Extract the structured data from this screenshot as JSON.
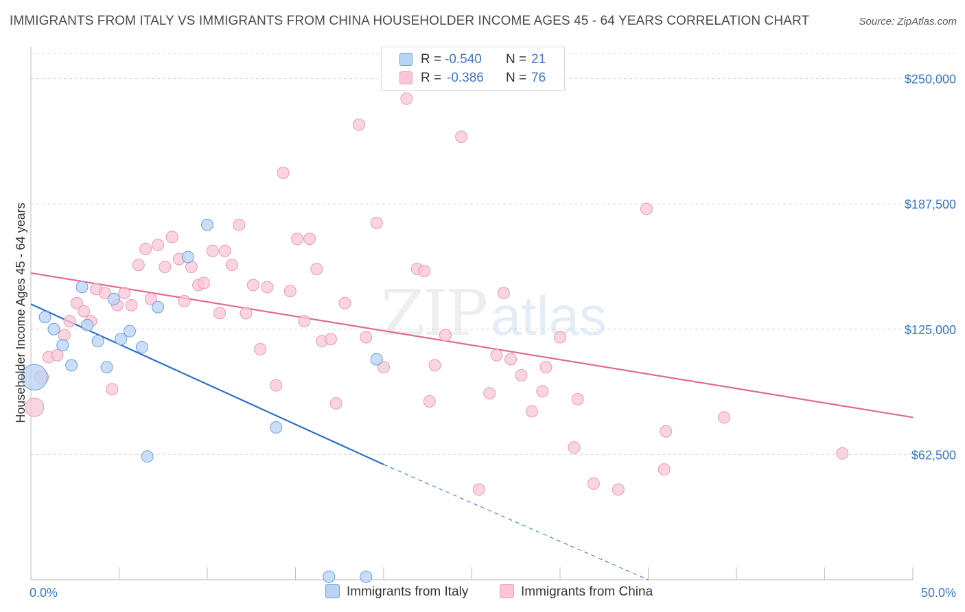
{
  "title": "IMMIGRANTS FROM ITALY VS IMMIGRANTS FROM CHINA HOUSEHOLDER INCOME AGES 45 - 64 YEARS CORRELATION CHART",
  "source": "Source: ZipAtlas.com",
  "colors": {
    "italy_fill": "#b9d3f5",
    "italy_stroke": "#6d9fe0",
    "italy_line": "#2a6fd1",
    "china_fill": "#f8c6d6",
    "china_stroke": "#ec9ab5",
    "china_line": "#e06a94",
    "tick_text": "#3c78c8",
    "grid": "#d9d9d9"
  },
  "legend": {
    "rows": [
      {
        "r_label": "R =",
        "r_value": "-0.540",
        "n_label": "N =",
        "n_value": "21"
      },
      {
        "r_label": "R =",
        "r_value": "-0.386",
        "n_label": "N =",
        "n_value": "76"
      }
    ]
  },
  "bottom_legend": {
    "italy": "Immigrants from Italy",
    "china": "Immigrants from China"
  },
  "chart_data": {
    "type": "scatter",
    "ylabel": "Householder Income Ages 45 - 64 years",
    "xlim": [
      0,
      50
    ],
    "ylim": [
      0,
      262500
    ],
    "x_tick_labels": [
      "0.0%",
      "50.0%"
    ],
    "y_ticks": [
      62500,
      125000,
      187500,
      250000
    ],
    "y_tick_labels": [
      "$62,500",
      "$125,000",
      "$187,500",
      "$250,000"
    ],
    "grid": true,
    "series": [
      {
        "name": "Immigrants from Italy",
        "points": [
          [
            0.2,
            101000,
            2.2
          ],
          [
            0.8,
            131000,
            1
          ],
          [
            1.3,
            125000,
            1
          ],
          [
            1.8,
            117000,
            1
          ],
          [
            2.3,
            107000,
            1
          ],
          [
            2.9,
            146000,
            1
          ],
          [
            3.2,
            127000,
            1
          ],
          [
            3.8,
            119000,
            1
          ],
          [
            4.3,
            106000,
            1
          ],
          [
            4.7,
            140000,
            1
          ],
          [
            5.1,
            120000,
            1
          ],
          [
            5.6,
            124000,
            1
          ],
          [
            6.3,
            116000,
            1
          ],
          [
            7.2,
            136000,
            1
          ],
          [
            6.6,
            61500,
            1
          ],
          [
            8.9,
            161000,
            1
          ],
          [
            10.0,
            177000,
            1
          ],
          [
            13.9,
            76000,
            1
          ],
          [
            19.6,
            110000,
            1
          ],
          [
            16.9,
            1500,
            1
          ],
          [
            19.0,
            1500,
            1
          ]
        ],
        "trend": {
          "x": [
            0,
            20
          ],
          "y": [
            137500,
            57500
          ]
        },
        "trend_extension": {
          "x": [
            20,
            35
          ],
          "y": [
            57500,
            0
          ]
        }
      },
      {
        "name": "Immigrants from China",
        "points": [
          [
            0.2,
            86000,
            1.6
          ],
          [
            0.6,
            101000,
            1.2
          ],
          [
            1.0,
            111000,
            1
          ],
          [
            1.5,
            112000,
            1
          ],
          [
            1.9,
            122000,
            1
          ],
          [
            2.2,
            129000,
            1
          ],
          [
            2.6,
            138000,
            1
          ],
          [
            3.0,
            134000,
            1
          ],
          [
            3.4,
            129000,
            1
          ],
          [
            3.7,
            145000,
            1
          ],
          [
            4.2,
            143000,
            1
          ],
          [
            4.6,
            95000,
            1
          ],
          [
            4.9,
            137000,
            1
          ],
          [
            5.3,
            143000,
            1
          ],
          [
            5.7,
            137000,
            1
          ],
          [
            6.1,
            157000,
            1
          ],
          [
            6.5,
            165000,
            1
          ],
          [
            6.8,
            140000,
            1
          ],
          [
            7.2,
            167000,
            1
          ],
          [
            7.6,
            156000,
            1
          ],
          [
            8.0,
            171000,
            1
          ],
          [
            8.4,
            160000,
            1
          ],
          [
            8.7,
            139000,
            1
          ],
          [
            9.1,
            156000,
            1
          ],
          [
            9.5,
            147000,
            1
          ],
          [
            9.8,
            148000,
            1
          ],
          [
            10.3,
            164000,
            1
          ],
          [
            10.7,
            133000,
            1
          ],
          [
            11.0,
            164000,
            1
          ],
          [
            11.4,
            157000,
            1
          ],
          [
            11.8,
            177000,
            1
          ],
          [
            12.2,
            133000,
            1
          ],
          [
            12.6,
            147000,
            1
          ],
          [
            13.0,
            115000,
            1
          ],
          [
            13.4,
            146000,
            1
          ],
          [
            13.9,
            97000,
            1
          ],
          [
            14.3,
            203000,
            1
          ],
          [
            14.7,
            144000,
            1
          ],
          [
            15.1,
            170000,
            1
          ],
          [
            15.5,
            129000,
            1
          ],
          [
            15.8,
            170000,
            1
          ],
          [
            16.2,
            155000,
            1
          ],
          [
            16.5,
            119000,
            1
          ],
          [
            17.0,
            120000,
            1
          ],
          [
            17.3,
            88000,
            1
          ],
          [
            17.8,
            138000,
            1
          ],
          [
            18.6,
            227000,
            1
          ],
          [
            19.0,
            121000,
            1
          ],
          [
            19.6,
            178000,
            1
          ],
          [
            20.0,
            106000,
            1
          ],
          [
            21.9,
            155000,
            1
          ],
          [
            22.3,
            154000,
            1
          ],
          [
            22.6,
            89000,
            1
          ],
          [
            22.9,
            107000,
            1
          ],
          [
            23.5,
            122000,
            1
          ],
          [
            24.4,
            221000,
            1
          ],
          [
            25.4,
            45000,
            1
          ],
          [
            26.0,
            93000,
            1
          ],
          [
            26.4,
            112000,
            1
          ],
          [
            26.8,
            143000,
            1
          ],
          [
            27.2,
            110000,
            1
          ],
          [
            27.8,
            102000,
            1
          ],
          [
            28.4,
            84000,
            1
          ],
          [
            29.0,
            94000,
            1
          ],
          [
            29.2,
            106000,
            1
          ],
          [
            30.0,
            121000,
            1
          ],
          [
            30.8,
            66000,
            1
          ],
          [
            31.0,
            90000,
            1
          ],
          [
            31.9,
            48000,
            1
          ],
          [
            33.3,
            45000,
            1
          ],
          [
            34.9,
            185000,
            1
          ],
          [
            35.9,
            55000,
            1
          ],
          [
            36.0,
            74000,
            1
          ],
          [
            39.3,
            81000,
            1
          ],
          [
            46.0,
            63000,
            1
          ],
          [
            21.3,
            240000,
            1
          ]
        ],
        "trend": {
          "x": [
            0,
            50
          ],
          "y": [
            153000,
            81000
          ]
        }
      }
    ]
  }
}
